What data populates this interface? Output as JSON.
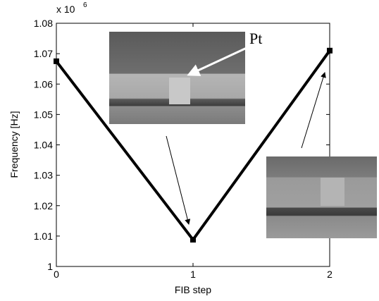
{
  "chart_data": {
    "type": "line",
    "x_label": "FIB step",
    "y_label": "Frequency [Hz]",
    "y_multiplier": {
      "base": "x 10",
      "exponent": "6"
    },
    "annotation": "Pt",
    "x": [
      0,
      1,
      2
    ],
    "values": [
      1.0675,
      1.0088,
      1.071
    ],
    "color": "#000000",
    "xlim": [
      0,
      2
    ],
    "xticks": [
      0,
      1,
      2
    ],
    "ylim": [
      1,
      1.08
    ],
    "yticks": [
      1,
      1.01,
      1.02,
      1.03,
      1.04,
      1.05,
      1.06,
      1.07,
      1.08
    ],
    "grid": false
  }
}
